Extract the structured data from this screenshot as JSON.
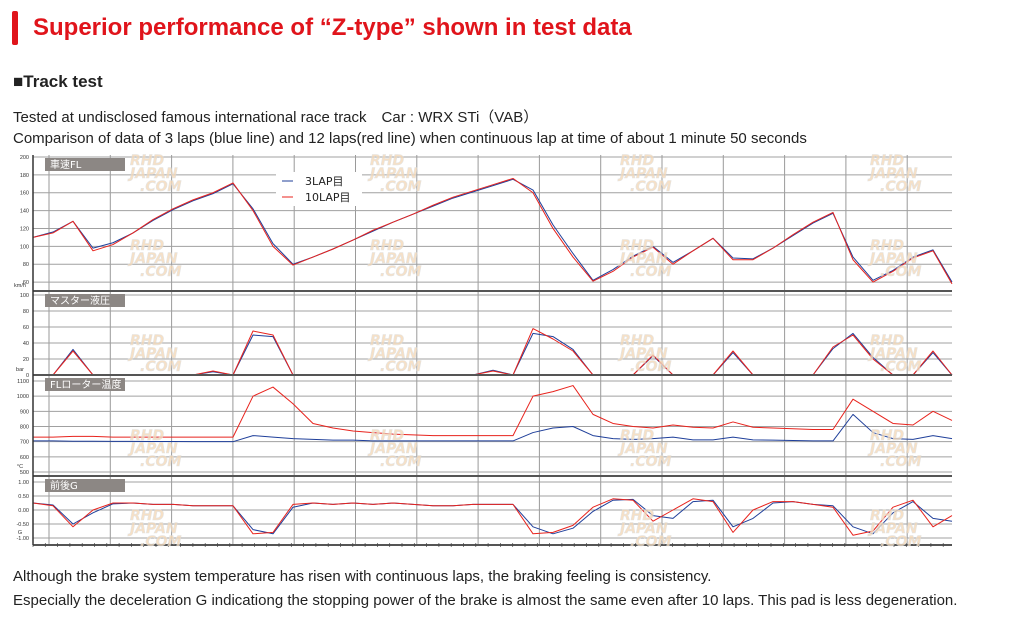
{
  "header": {
    "title": "Superior performance of “Z-type” shown in test data",
    "section": "■Track test"
  },
  "intro": [
    "Tested at undisclosed famous international race track　Car : WRX STi（VAB）",
    "Comparison of data of 3 laps (blue line) and 12 laps(red line) when continuous lap at time of about 1 minute 50 seconds"
  ],
  "conclusion": [
    "Although the brake system temperature has risen with continuous laps, the braking feeling is consistency.",
    "Especially the deceleration G indicationg the stopping power of the brake is almost the same even after 10 laps. This pad is less degeneration."
  ],
  "watermark": "RHD JAPAN .COM",
  "colors": {
    "accent": "#e0141b",
    "lap3": "#1f3f9a",
    "lap10": "#e8231d",
    "panel_label_bg": "#8c8784"
  },
  "chart_data": {
    "type": "line",
    "legend": {
      "placement": "top-center",
      "entries": [
        "3LAP目",
        "10LAP目"
      ]
    },
    "grid": true,
    "panels": [
      {
        "label": "車速FL",
        "unit": "km/h",
        "ylim": [
          50,
          200
        ],
        "ticks": [
          200,
          180,
          160,
          140,
          120,
          100,
          80,
          60
        ],
        "series": [
          {
            "name": "3LAP目",
            "values": [
              110,
              116,
              128,
              98,
              104,
              115,
              129,
              141,
              151,
              159,
              170,
              142,
              103,
              80,
              88,
              97,
              107,
              117,
              127,
              136,
              145,
              154,
              161,
              168,
              175,
              163,
              124,
              92,
              62,
              74,
              89,
              100,
              82,
              95,
              109,
              87,
              86,
              98,
              112,
              126,
              137,
              88,
              62,
              73,
              88,
              96,
              60
            ]
          },
          {
            "name": "10LAP目",
            "values": [
              110,
              115,
              128,
              95,
              102,
              115,
              130,
              142,
              152,
              160,
              171,
              140,
              100,
              79,
              88,
              97,
              107,
              118,
              127,
              136,
              146,
              155,
              162,
              169,
              176,
              160,
              120,
              88,
              61,
              72,
              88,
              99,
              80,
              95,
              109,
              85,
              85,
              98,
              113,
              127,
              138,
              85,
              60,
              72,
              87,
              95,
              58
            ]
          }
        ]
      },
      {
        "label": "マスター液圧",
        "unit": "bar",
        "ylim": [
          0,
          100
        ],
        "ticks": [
          100,
          80,
          60,
          40,
          20,
          0
        ],
        "series": [
          {
            "name": "3LAP目",
            "values": [
              0,
              0,
              32,
              0,
              0,
              0,
              0,
              0,
              0,
              4,
              0,
              50,
              48,
              0,
              0,
              0,
              0,
              0,
              0,
              0,
              0,
              0,
              0,
              6,
              0,
              52,
              48,
              32,
              0,
              0,
              0,
              24,
              0,
              0,
              0,
              28,
              0,
              0,
              0,
              0,
              33,
              52,
              22,
              0,
              0,
              28,
              0
            ]
          },
          {
            "name": "10LAP目",
            "values": [
              0,
              0,
              30,
              0,
              0,
              0,
              0,
              0,
              0,
              5,
              0,
              55,
              50,
              0,
              0,
              0,
              0,
              0,
              0,
              0,
              0,
              0,
              0,
              5,
              0,
              58,
              45,
              30,
              0,
              0,
              0,
              25,
              0,
              0,
              0,
              30,
              0,
              0,
              0,
              0,
              35,
              50,
              20,
              0,
              0,
              30,
              0
            ]
          }
        ]
      },
      {
        "label": "FLローター温度",
        "unit": "°C",
        "ylim": [
          500,
          1100
        ],
        "ticks": [
          1100,
          1000,
          900,
          800,
          700,
          600,
          500
        ],
        "series": [
          {
            "name": "3LAP目",
            "values": [
              705,
              705,
              703,
              703,
              702,
              702,
              701,
              701,
              700,
              700,
              700,
              740,
              730,
              720,
              715,
              710,
              710,
              705,
              705,
              705,
              705,
              705,
              705,
              705,
              705,
              760,
              790,
              800,
              740,
              720,
              715,
              720,
              730,
              712,
              712,
              730,
              712,
              710,
              708,
              705,
              705,
              880,
              760,
              720,
              715,
              740,
              720
            ]
          },
          {
            "name": "10LAP目",
            "values": [
              730,
              730,
              735,
              735,
              730,
              730,
              730,
              730,
              730,
              730,
              730,
              1000,
              1060,
              950,
              820,
              790,
              770,
              760,
              750,
              745,
              740,
              740,
              740,
              740,
              740,
              1000,
              1030,
              1070,
              880,
              820,
              800,
              790,
              810,
              795,
              790,
              830,
              795,
              790,
              785,
              780,
              780,
              980,
              900,
              820,
              810,
              900,
              840
            ]
          }
        ]
      },
      {
        "label": "前後G",
        "unit": "G",
        "ylim": [
          -1,
          1
        ],
        "ticks": [
          "1.00",
          "0.50",
          "0.00",
          "-0.50",
          "-1.00"
        ],
        "series": [
          {
            "name": "3LAP目",
            "values": [
              0.25,
              0.18,
              -0.5,
              -0.1,
              0.22,
              0.25,
              0.2,
              0.2,
              0.15,
              0.15,
              0.15,
              -0.7,
              -0.85,
              0.1,
              0.25,
              0.2,
              0.25,
              0.2,
              0.25,
              0.2,
              0.15,
              0.15,
              0.2,
              0.2,
              0.2,
              -0.6,
              -0.85,
              -0.65,
              -0.05,
              0.35,
              0.38,
              -0.2,
              -0.3,
              0.3,
              0.35,
              -0.6,
              -0.3,
              0.25,
              0.3,
              0.2,
              0.15,
              -0.6,
              -0.85,
              -0.1,
              0.3,
              -0.3,
              -0.4
            ]
          },
          {
            "name": "10LAP目",
            "values": [
              0.25,
              0.15,
              -0.6,
              0.0,
              0.25,
              0.25,
              0.2,
              0.2,
              0.15,
              0.15,
              0.15,
              -0.85,
              -0.8,
              0.2,
              0.25,
              0.2,
              0.25,
              0.2,
              0.25,
              0.2,
              0.15,
              0.15,
              0.2,
              0.2,
              0.2,
              -0.85,
              -0.8,
              -0.55,
              0.1,
              0.4,
              0.35,
              -0.4,
              0.0,
              0.4,
              0.3,
              -0.8,
              0.0,
              0.3,
              0.3,
              0.2,
              0.1,
              -0.9,
              -0.75,
              0.1,
              0.35,
              -0.6,
              -0.2
            ]
          }
        ]
      }
    ]
  }
}
